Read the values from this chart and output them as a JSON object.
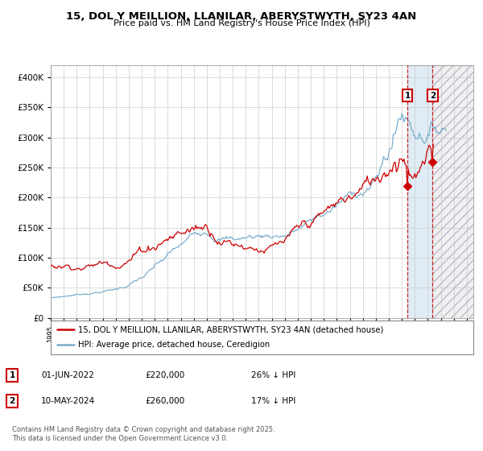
{
  "title": "15, DOL Y MEILLION, LLANILAR, ABERYSTWYTH, SY23 4AN",
  "subtitle": "Price paid vs. HM Land Registry's House Price Index (HPI)",
  "legend_line1": "15, DOL Y MEILLION, LLANILAR, ABERYSTWYTH, SY23 4AN (detached house)",
  "legend_line2": "HPI: Average price, detached house, Ceredigion",
  "annotation1_date": "01-JUN-2022",
  "annotation1_price": "£220,000",
  "annotation1_hpi": "26% ↓ HPI",
  "annotation2_date": "10-MAY-2024",
  "annotation2_price": "£260,000",
  "annotation2_hpi": "17% ↓ HPI",
  "footer": "Contains HM Land Registry data © Crown copyright and database right 2025.\nThis data is licensed under the Open Government Licence v3.0.",
  "line_price_color": "#cc0000",
  "line_hpi_color": "#7aadcc",
  "background_color": "#ffffff",
  "grid_color": "#cccccc",
  "ylim": [
    0,
    420000
  ],
  "xlim_start": 1995.0,
  "xlim_end": 2027.5,
  "purchase1_year": 2022.42,
  "purchase1_value": 220000,
  "purchase2_year": 2024.37,
  "purchase2_value": 260000,
  "forecast_start_year": 2024.37,
  "band_start_year": 2022.42
}
